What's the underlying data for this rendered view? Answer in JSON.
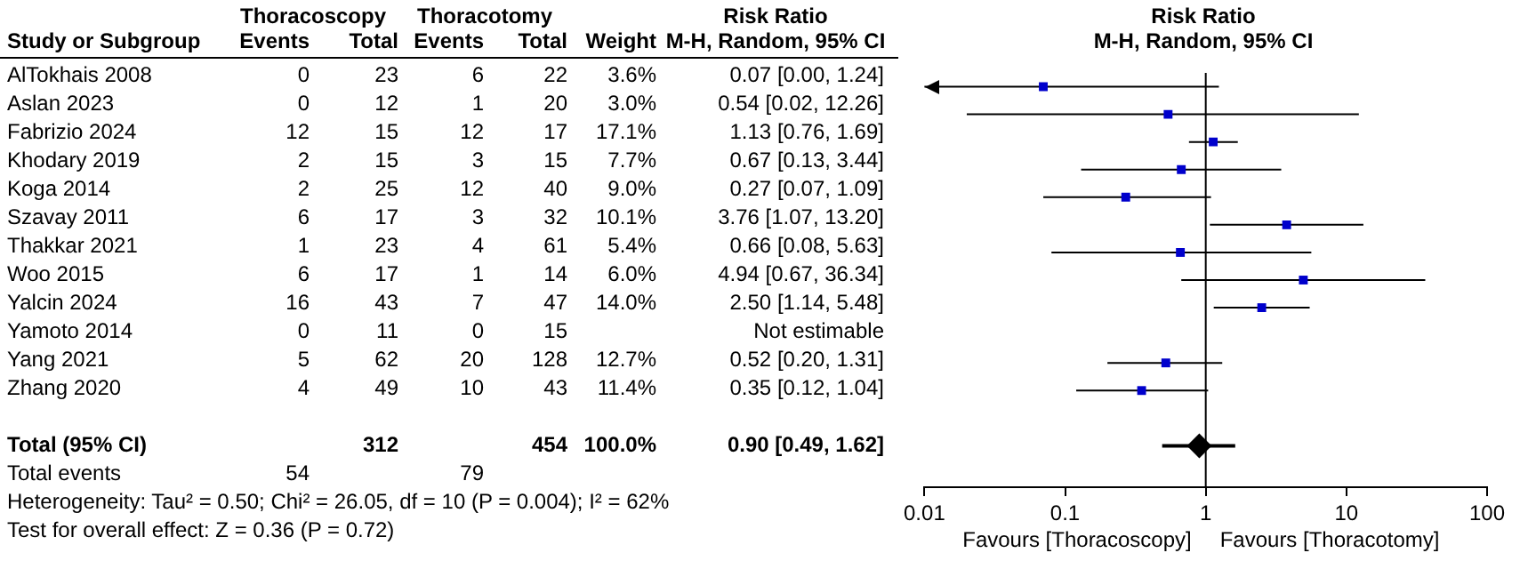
{
  "chart_data": [
    {
      "type": "other",
      "data_labels": true,
      "ylabel": "Study or Subgroup",
      "title": "Risk Ratio",
      "subtitle": "M-H, Random, 95% CI",
      "annotations": [
        "Thoracoscopy",
        "Thoracotomy",
        "Heterogeneity: Tau² = 0.50; Chi² = 26.05, df = 10 (P = 0.004); I² = 62%",
        "Test for overall effect: Z = 0.36 (P = 0.72)"
      ],
      "categories": [
        "AlTokhais 2008",
        "Aslan 2023",
        "Fabrizio 2024",
        "Khodary 2019",
        "Koga 2014",
        "Szavay 2011",
        "Thakkar 2021",
        "Woo 2015",
        "Yalcin 2024",
        "Yamoto 2014",
        "Yang 2021",
        "Zhang 2020",
        null,
        "Total (95% CI)",
        "Total events"
      ],
      "series": [
        {
          "name": "Events",
          "values": [
            0,
            0,
            12,
            2,
            2,
            6,
            1,
            6,
            16,
            0,
            5,
            4,
            null,
            null,
            54
          ]
        },
        {
          "name": "Total",
          "values": [
            23,
            12,
            15,
            15,
            25,
            17,
            23,
            17,
            43,
            11,
            62,
            49,
            null,
            312,
            null
          ]
        },
        {
          "name": "Events",
          "values": [
            6,
            1,
            12,
            3,
            12,
            3,
            4,
            1,
            7,
            0,
            20,
            10,
            null,
            null,
            79
          ]
        },
        {
          "name": "Total",
          "values": [
            22,
            20,
            17,
            15,
            40,
            32,
            61,
            14,
            47,
            15,
            128,
            43,
            null,
            454,
            null
          ]
        },
        {
          "name": "Weight",
          "values": [
            3.6,
            3.0,
            17.1,
            7.7,
            9.0,
            10.1,
            5.4,
            6.0,
            14.0,
            null,
            12.7,
            11.4,
            null,
            100.0,
            null
          ],
          "value_labels": [
            "3.6%",
            "3.0%",
            "17.1%",
            "7.7%",
            "9.0%",
            "10.1%",
            "5.4%",
            "6.0%",
            "14.0%",
            null,
            "12.7%",
            "11.4%",
            null,
            "100.0%",
            null
          ]
        },
        {
          "values": [
            0.07,
            0.54,
            1.13,
            0.67,
            0.27,
            3.76,
            0.66,
            4.94,
            2.5,
            null,
            0.52,
            0.35,
            null,
            0.9,
            null
          ],
          "value_labels": [
            "0.07 [0.00, 1.24]",
            "0.54 [0.02, 12.26]",
            "1.13 [0.76, 1.69]",
            "0.67 [0.13, 3.44]",
            "0.27 [0.07, 1.09]",
            "3.76 [1.07, 13.20]",
            "0.66 [0.08, 5.63]",
            "4.94 [0.67, 36.34]",
            "2.50 [1.14, 5.48]",
            "Not estimable",
            "0.52 [0.20, 1.31]",
            "0.35 [0.12, 1.04]",
            null,
            "0.90 [0.49, 1.62]",
            null
          ]
        }
      ]
    },
    {
      "type": "scatter",
      "orientation": "horizontal",
      "log": "x",
      "title": "Risk Ratio",
      "subtitle": "M-H, Random, 95% CI",
      "tick_labels": "x",
      "marker": "square",
      "categories": [
        null,
        null,
        null,
        null,
        null,
        null,
        null,
        null,
        null,
        null,
        null,
        null,
        null,
        null,
        null
      ],
      "xlim": [
        0.01,
        100
      ],
      "xticks": [
        0.01,
        0.1,
        1,
        10,
        100
      ],
      "annotations": [
        "Favours [Thoracoscopy]",
        "Favours [Thoracotomy]"
      ],
      "ref_lines": [
        {
          "axis": "x",
          "value": 1,
          "color": "#000000"
        }
      ],
      "series": [
        {
          "color": "#0000cc",
          "values": [
            0.07,
            0.54,
            1.13,
            0.67,
            0.27,
            3.76,
            0.66,
            4.94,
            2.5,
            null,
            0.52,
            0.35,
            null,
            null,
            null
          ],
          "errors": [
            [
              0.01,
              1.24
            ],
            [
              0.02,
              12.26
            ],
            [
              0.76,
              1.69
            ],
            [
              0.13,
              3.44
            ],
            [
              0.07,
              1.09
            ],
            [
              1.07,
              13.2
            ],
            [
              0.08,
              5.63
            ],
            [
              0.67,
              36.34
            ],
            [
              1.14,
              5.48
            ],
            null,
            [
              0.2,
              1.31
            ],
            [
              0.12,
              1.04
            ],
            null,
            null,
            null
          ]
        },
        {
          "color": "#000000",
          "marker": "diamond",
          "values": [
            null,
            null,
            null,
            null,
            null,
            null,
            null,
            null,
            null,
            null,
            null,
            null,
            null,
            0.9,
            null
          ],
          "errors": [
            null,
            null,
            null,
            null,
            null,
            null,
            null,
            null,
            null,
            null,
            null,
            null,
            null,
            [
              0.49,
              1.62
            ],
            null
          ]
        }
      ]
    }
  ]
}
